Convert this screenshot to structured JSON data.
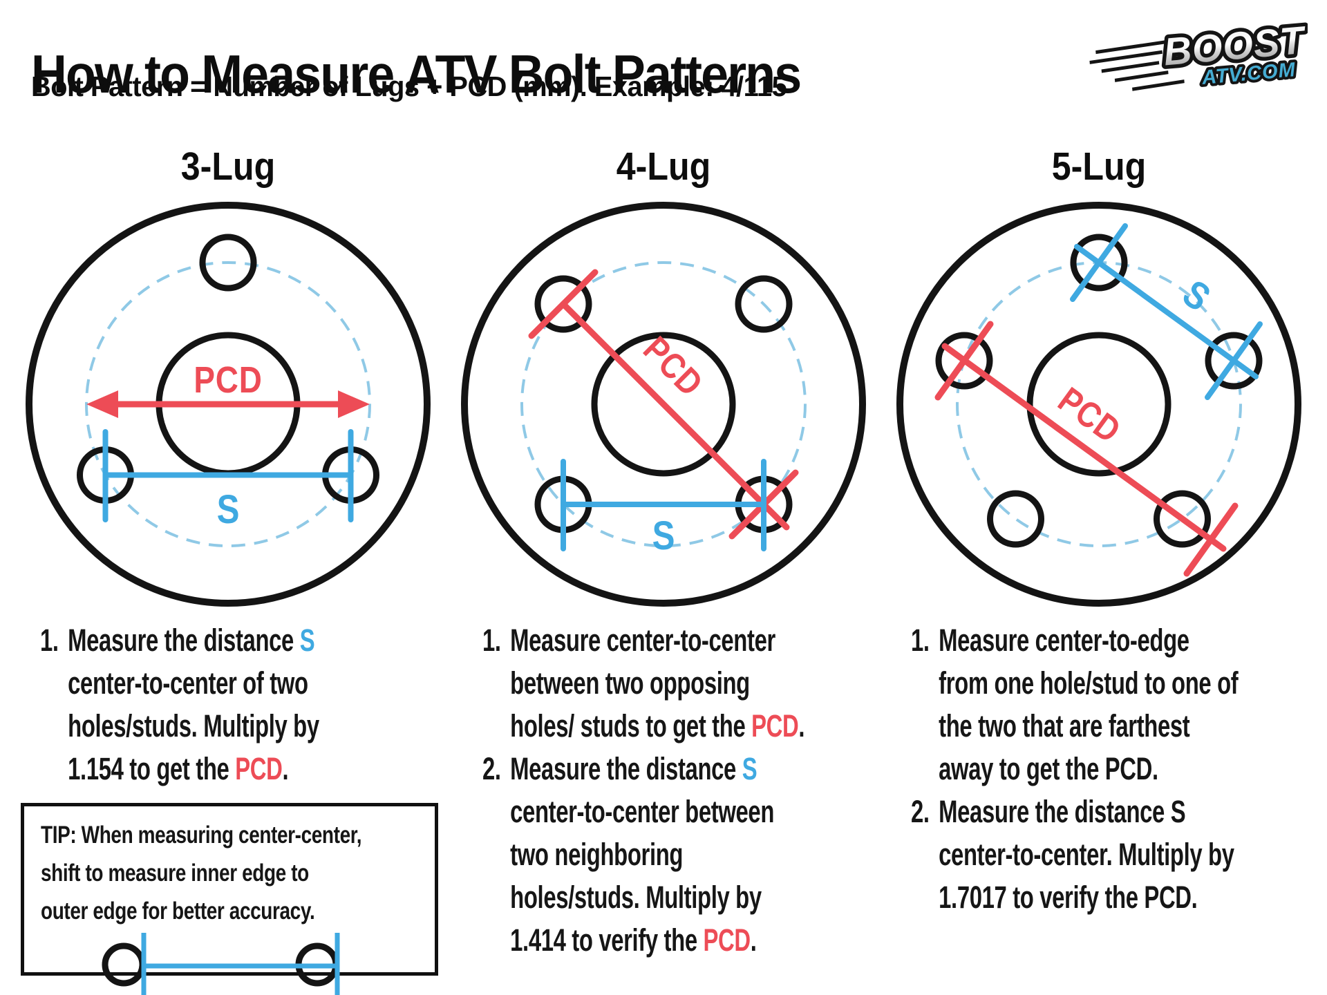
{
  "header": {
    "title": "How to Measure ATV Bolt Patterns",
    "subtitle": "Bolt Pattern = Number of Lugs + PCD (mm). Example: 4/115",
    "logo": {
      "line1": "BOOST",
      "line2": "ATV.COM"
    }
  },
  "colors": {
    "red": "#ed4c56",
    "blue": "#3fa9e1",
    "dashed_blue": "#8fc9e6",
    "logo_cyan": "#45acd3"
  },
  "diagrams": [
    {
      "label": "3-Lug",
      "pcd": "PCD",
      "s": "S"
    },
    {
      "label": "4-Lug",
      "pcd": "PCD",
      "s": "S"
    },
    {
      "label": "5-Lug",
      "pcd": "PCD",
      "s": "S"
    }
  ],
  "instructions": {
    "col1": [
      {
        "num": "1.",
        "segments": [
          {
            "t": "Measure the distance "
          },
          {
            "t": "S",
            "c": "blue"
          },
          {
            "br": 1
          },
          {
            "t": "center-to-center of two"
          },
          {
            "br": 1
          },
          {
            "t": "holes/studs. Multiply by"
          },
          {
            "br": 1
          },
          {
            "t": "1.154 to get the "
          },
          {
            "t": "PCD",
            "c": "red"
          },
          {
            "t": "."
          }
        ]
      }
    ],
    "col2": [
      {
        "num": "1.",
        "segments": [
          {
            "t": "Measure center-to-center"
          },
          {
            "br": 1
          },
          {
            "t": "between two opposing"
          },
          {
            "br": 1
          },
          {
            "t": "holes/ studs to get the "
          },
          {
            "t": "PCD",
            "c": "red"
          },
          {
            "t": "."
          }
        ]
      },
      {
        "num": "2.",
        "segments": [
          {
            "t": "Measure the distance "
          },
          {
            "t": "S",
            "c": "blue"
          },
          {
            "br": 1
          },
          {
            "t": "center-to-center between"
          },
          {
            "br": 1
          },
          {
            "t": "two neighboring"
          },
          {
            "br": 1
          },
          {
            "t": "holes/studs. Multiply by"
          },
          {
            "br": 1
          },
          {
            "t": "1.414 to verify the "
          },
          {
            "t": "PCD",
            "c": "red"
          },
          {
            "t": "."
          }
        ]
      }
    ],
    "col3": [
      {
        "num": "1.",
        "segments": [
          {
            "t": "Measure center-to-edge"
          },
          {
            "br": 1
          },
          {
            "t": "from one hole/stud to one of"
          },
          {
            "br": 1
          },
          {
            "t": "the two that are farthest"
          },
          {
            "br": 1
          },
          {
            "t": "away to get the PCD."
          }
        ]
      },
      {
        "num": "2.",
        "segments": [
          {
            "t": "Measure the distance S"
          },
          {
            "br": 1
          },
          {
            "t": "center-to-center. Multiply by"
          },
          {
            "br": 1
          },
          {
            "t": "1.7017 to verify the PCD."
          }
        ]
      }
    ]
  },
  "tip": {
    "segments": [
      {
        "t": "TIP: When measuring center-center,"
      },
      {
        "br": 1
      },
      {
        "t": "shift to measure inner edge to"
      },
      {
        "br": 1
      },
      {
        "t": "outer edge for better accuracy."
      }
    ]
  }
}
